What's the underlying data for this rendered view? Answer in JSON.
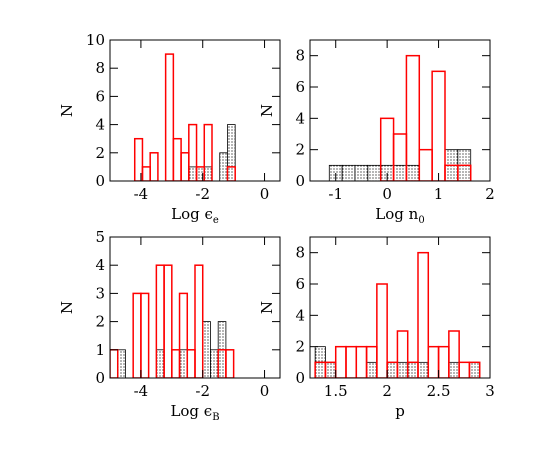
{
  "chart_data": [
    {
      "type": "histogram",
      "xlabel": "Log ϵ",
      "xlabel_sub": "e",
      "ylabel": "N",
      "xlim": [
        -5,
        0.5
      ],
      "ylim": [
        0,
        10
      ],
      "xticks": [
        -4,
        -2,
        0
      ],
      "yticks": [
        0,
        2,
        4,
        6,
        8,
        10
      ],
      "bins": [
        -4.2,
        -3.95,
        -3.7,
        -3.45,
        -3.2,
        -2.95,
        -2.7,
        -2.45,
        -2.2,
        -1.95,
        -1.7,
        -1.45,
        -1.2,
        -0.95,
        -0.7
      ],
      "series": [
        {
          "color": "#000000",
          "values": [
            0,
            0,
            0,
            0,
            0,
            0,
            0,
            1,
            1,
            1,
            0,
            2,
            4,
            0
          ]
        },
        {
          "color": "#ff0000",
          "values": [
            3,
            1,
            2,
            0,
            9,
            3,
            2,
            4,
            1,
            4,
            0,
            0,
            1,
            0
          ]
        }
      ]
    },
    {
      "type": "histogram",
      "xlabel": "Log n",
      "xlabel_sub": "0",
      "ylabel": "N",
      "xlim": [
        -1.5,
        2
      ],
      "ylim": [
        0,
        9
      ],
      "xticks": [
        -1,
        0,
        1,
        2
      ],
      "yticks": [
        0,
        2,
        4,
        6,
        8
      ],
      "bins": [
        -1.125,
        -0.875,
        -0.625,
        -0.375,
        -0.125,
        0.125,
        0.375,
        0.625,
        0.875,
        1.125,
        1.375,
        1.625
      ],
      "series": [
        {
          "color": "#000000",
          "values": [
            1,
            1,
            1,
            1,
            1,
            1,
            1,
            0,
            0,
            2,
            2
          ]
        },
        {
          "color": "#ff0000",
          "values": [
            0,
            0,
            0,
            0,
            4,
            3,
            8,
            2,
            7,
            1,
            1
          ]
        }
      ]
    },
    {
      "type": "histogram",
      "xlabel": "Log ϵ",
      "xlabel_sub": "B",
      "ylabel": "N",
      "xlim": [
        -5,
        0.5
      ],
      "ylim": [
        0,
        5
      ],
      "xticks": [
        -4,
        -2,
        0
      ],
      "yticks": [
        0,
        1,
        2,
        3,
        4,
        5
      ],
      "bins": [
        -5,
        -4.75,
        -4.5,
        -4.25,
        -4,
        -3.75,
        -3.5,
        -3.25,
        -3,
        -2.75,
        -2.5,
        -2.25,
        -2,
        -1.75,
        -1.5,
        -1.25,
        -1,
        -0.75
      ],
      "series": [
        {
          "color": "#000000",
          "values": [
            0,
            1,
            0,
            0,
            0,
            0,
            1,
            0,
            0,
            1,
            0,
            0,
            2,
            1,
            2,
            0,
            0
          ]
        },
        {
          "color": "#ff0000",
          "values": [
            1,
            0,
            0,
            3,
            3,
            0,
            4,
            4,
            1,
            3,
            1,
            4,
            0,
            0,
            1,
            1,
            0
          ]
        }
      ]
    },
    {
      "type": "histogram",
      "xlabel": "p",
      "ylabel": "N",
      "xlim": [
        1.25,
        3
      ],
      "ylim": [
        0,
        9
      ],
      "xticks": [
        1.5,
        2,
        2.5,
        3
      ],
      "yticks": [
        0,
        2,
        4,
        6,
        8
      ],
      "bins": [
        1.3,
        1.4,
        1.5,
        1.6,
        1.7,
        1.8,
        1.9,
        2,
        2.1,
        2.2,
        2.3,
        2.4,
        2.5,
        2.6,
        2.7,
        2.8,
        2.9
      ],
      "series": [
        {
          "color": "#000000",
          "values": [
            2,
            1,
            0,
            0,
            0,
            1,
            0,
            1,
            1,
            1,
            1,
            0,
            0,
            1,
            0,
            1
          ]
        },
        {
          "color": "#ff0000",
          "values": [
            1,
            1,
            2,
            2,
            2,
            2,
            6,
            1,
            3,
            1,
            8,
            2,
            2,
            3,
            1,
            1
          ]
        }
      ]
    }
  ]
}
